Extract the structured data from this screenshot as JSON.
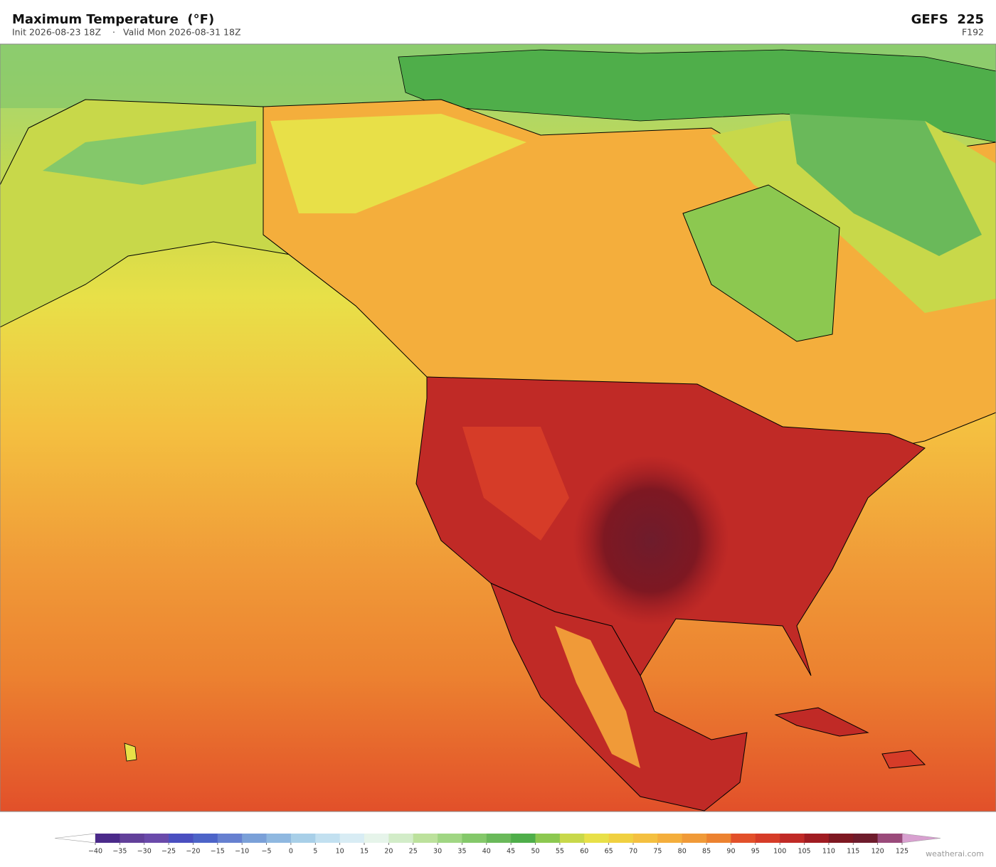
{
  "header": {
    "title": "Maximum Temperature  (°F)",
    "init": "Init 2026-08-23 18Z",
    "separator": "·",
    "valid": "Valid Mon 2026-08-31 18Z",
    "model": "GEFS  225",
    "forecast_hour": "F192"
  },
  "colorbar": {
    "ticks": [
      {
        "value": -40,
        "label": "−40"
      },
      {
        "value": -35,
        "label": "−35"
      },
      {
        "value": -30,
        "label": "−30"
      },
      {
        "value": -25,
        "label": "−25"
      },
      {
        "value": -20,
        "label": "−20"
      },
      {
        "value": -15,
        "label": "−15"
      },
      {
        "value": -10,
        "label": "−10"
      },
      {
        "value": -5,
        "label": "−5"
      },
      0,
      5,
      10,
      15,
      20,
      25,
      30,
      35,
      40,
      45,
      50,
      55,
      60,
      65,
      70,
      75,
      80,
      85,
      90,
      95,
      100,
      105,
      110,
      115,
      120,
      125
    ],
    "colors": [
      "#4b2a8a",
      "#62409a",
      "#6a4aaa",
      "#4a4fc0",
      "#4d64c8",
      "#6680d0",
      "#7aa0d8",
      "#8fb8e0",
      "#a8cfe8",
      "#c2e0f0",
      "#d8ecf4",
      "#e6f4ea",
      "#d2ecc8",
      "#bce19c",
      "#a0d683",
      "#84c86a",
      "#6ab95a",
      "#4fae4a",
      "#8cc850",
      "#c8d84a",
      "#e8e048",
      "#f0d040",
      "#f4c040",
      "#f4ae3c",
      "#f09a38",
      "#ec8230",
      "#e2502a",
      "#d63c28",
      "#c02a26",
      "#a01c22",
      "#7e1822",
      "#6e1c2c",
      "#9a4a7a"
    ],
    "under_color": "#ffffff",
    "over_color": "#d8a0d0"
  },
  "footer": {
    "credit": "weatherai.com"
  }
}
